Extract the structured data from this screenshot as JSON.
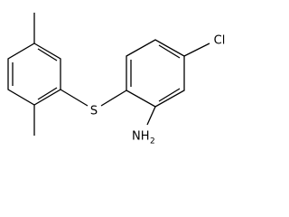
{
  "atoms": [
    {
      "label": "Cl"
    },
    {
      "label": "S"
    },
    {
      "label": "NH",
      "subscript": "2"
    }
  ]
}
